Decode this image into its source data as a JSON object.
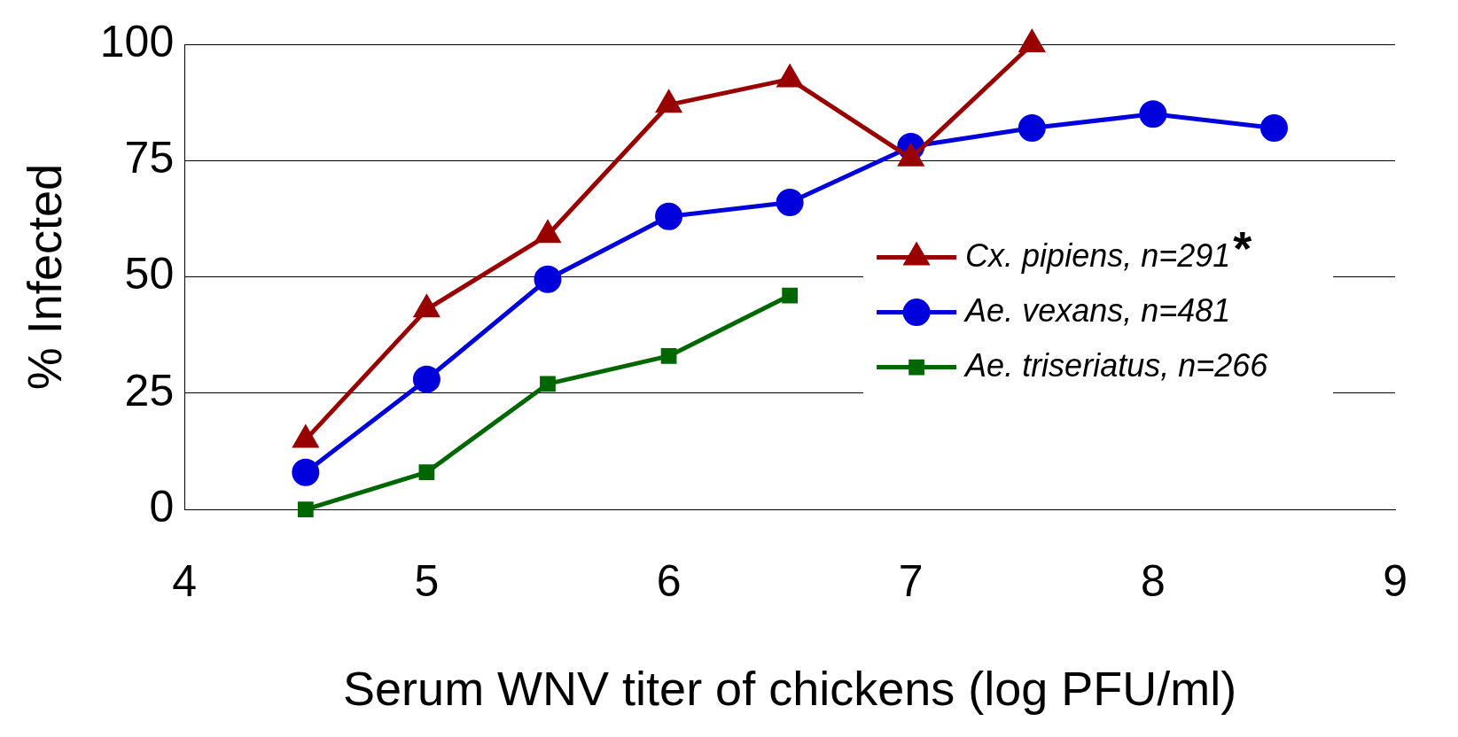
{
  "chart_data": {
    "type": "line",
    "xlabel": "Serum WNV titer of chickens (log PFU/ml)",
    "ylabel": "% Infected",
    "xlim": [
      4,
      9
    ],
    "xticks": [
      4,
      5,
      6,
      7,
      8,
      9
    ],
    "ylim": [
      0,
      100
    ],
    "yticks": [
      0,
      25,
      50,
      75,
      100
    ],
    "grid": "y",
    "legend": "right",
    "annotations": [
      "*"
    ],
    "series": [
      {
        "name": "Cx. pipiens, n=291",
        "color": "#990000",
        "marker": "triangle",
        "x": [
          4.5,
          5,
          5.5,
          6,
          6.5,
          7,
          7.5
        ],
        "values": [
          15,
          43,
          59,
          87,
          92.5,
          75.5,
          100
        ]
      },
      {
        "name": "Ae. vexans, n=481",
        "color": "#0000dd",
        "marker": "circle",
        "x": [
          4.5,
          5,
          5.5,
          6,
          6.5,
          7,
          7.5,
          8,
          8.5
        ],
        "values": [
          8,
          28,
          49.5,
          63,
          66,
          78,
          82,
          85,
          82
        ]
      },
      {
        "name": "Ae. triseriatus, n=266",
        "color": "#006600",
        "marker": "square",
        "x": [
          4.5,
          5,
          5.5,
          6,
          6.5
        ],
        "values": [
          0,
          8,
          27,
          33,
          46
        ]
      }
    ]
  }
}
